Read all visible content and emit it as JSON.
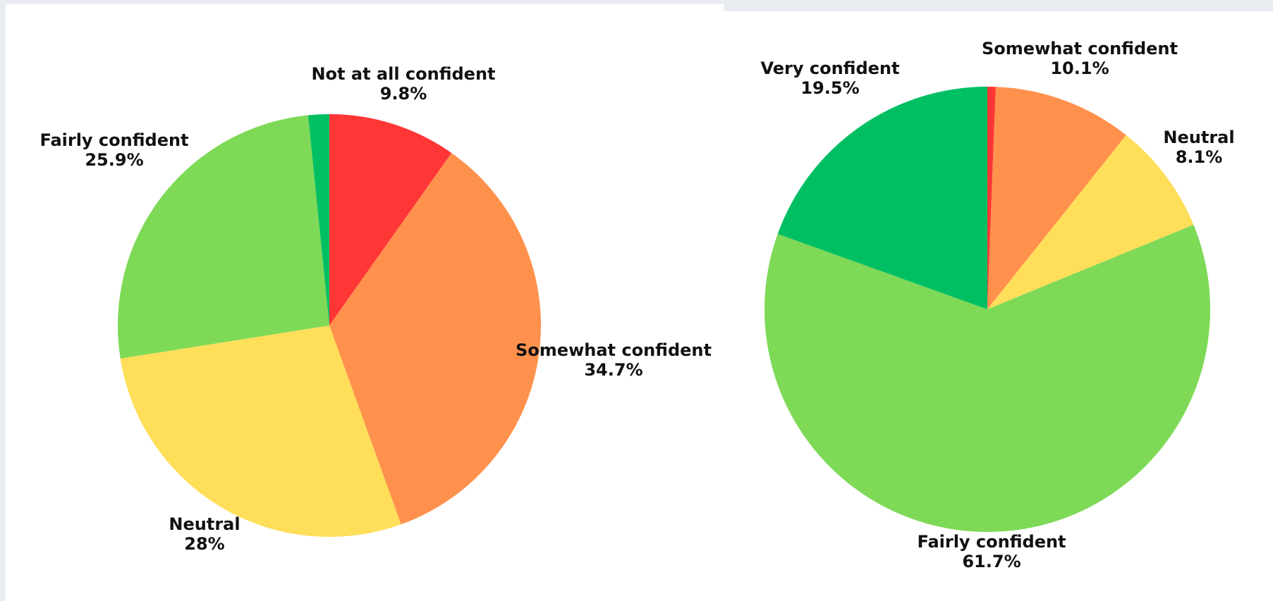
{
  "chart_data": [
    {
      "type": "pie",
      "title": "",
      "slices": [
        {
          "label": "Not at all confident",
          "value": 9.8,
          "value_label": "9.8%",
          "color": "#ff3636"
        },
        {
          "label": "Somewhat confident",
          "value": 34.7,
          "value_label": "34.7%",
          "color": "#ff914d"
        },
        {
          "label": "Neutral",
          "value": 28.0,
          "value_label": "28%",
          "color": "#ffde59"
        },
        {
          "label": "Fairly confident",
          "value": 25.9,
          "value_label": "25.9%",
          "color": "#7ed957"
        },
        {
          "label": "",
          "value": 1.6,
          "value_label": "",
          "color": "#00bf63"
        }
      ],
      "start": "12 o'clock",
      "direction": "clockwise",
      "legend": "none"
    },
    {
      "type": "pie",
      "title": "",
      "slices": [
        {
          "label": "",
          "value": 0.6,
          "value_label": "",
          "color": "#ff3636"
        },
        {
          "label": "Somewhat confident",
          "value": 10.1,
          "value_label": "10.1%",
          "color": "#ff914d"
        },
        {
          "label": "Neutral",
          "value": 8.1,
          "value_label": "8.1%",
          "color": "#ffde59"
        },
        {
          "label": "Fairly confident",
          "value": 61.7,
          "value_label": "61.7%",
          "color": "#7ed957"
        },
        {
          "label": "Very confident",
          "value": 19.5,
          "value_label": "19.5%",
          "color": "#00bf63"
        }
      ],
      "start": "12 o'clock",
      "direction": "clockwise",
      "legend": "none"
    }
  ]
}
